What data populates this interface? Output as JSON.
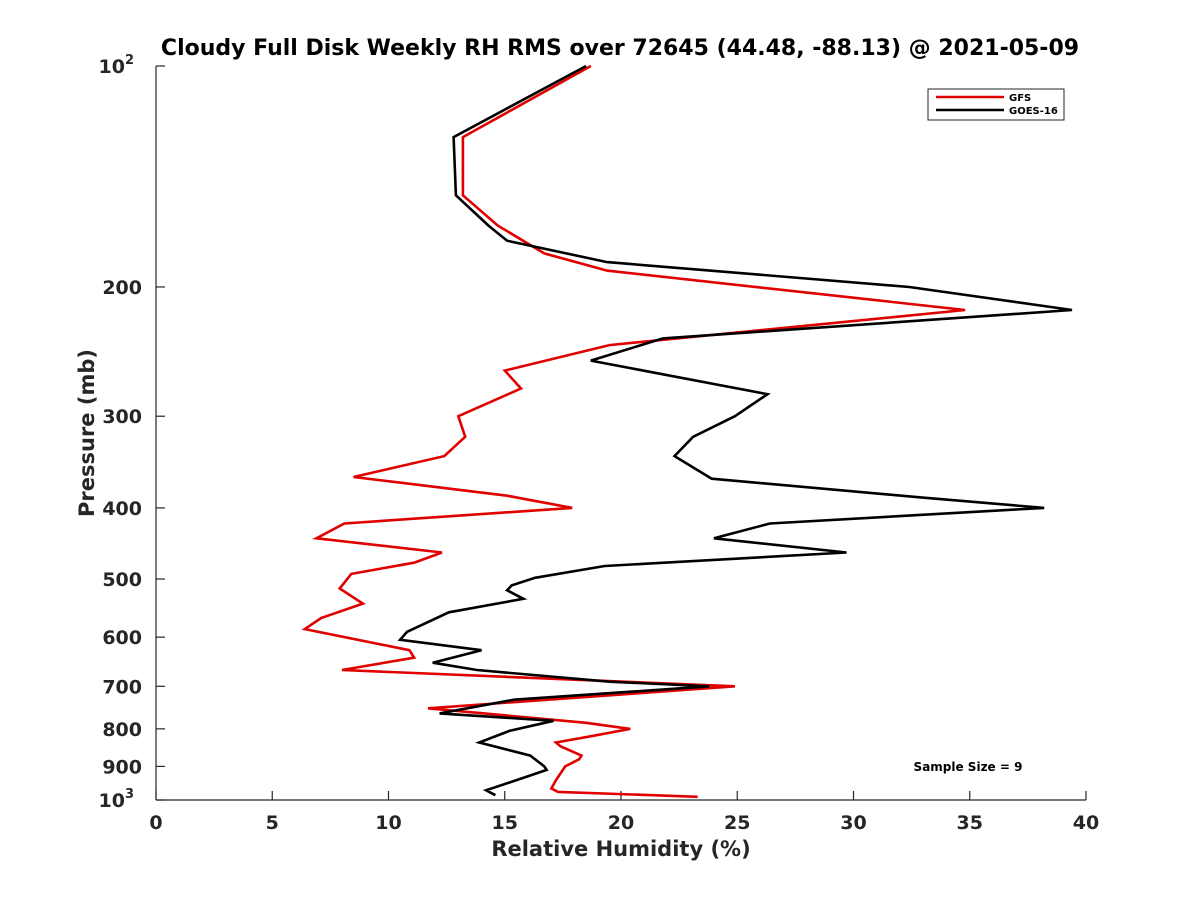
{
  "chart_data": {
    "type": "line",
    "title": "Cloudy Full Disk Weekly RH RMS over 72645 (44.48, -88.13) @ 2021-05-09",
    "xlabel": "Relative Humidity (%)",
    "ylabel": "Pressure (mb)",
    "xlim": [
      0,
      40
    ],
    "ylim": [
      100,
      1000
    ],
    "yscale": "log",
    "y_reversed": true,
    "grid": false,
    "legend_position": "top-right",
    "x_ticks": [
      "0",
      "5",
      "10",
      "15",
      "20",
      "25",
      "30",
      "35",
      "40"
    ],
    "y_ticks": [
      {
        "value": 100,
        "base": "10",
        "exp": "2"
      },
      {
        "value": 200,
        "label": "200"
      },
      {
        "value": 300,
        "label": "300"
      },
      {
        "value": 400,
        "label": "400"
      },
      {
        "value": 500,
        "label": "500"
      },
      {
        "value": 600,
        "label": "600"
      },
      {
        "value": 700,
        "label": "700"
      },
      {
        "value": 800,
        "label": "800"
      },
      {
        "value": 900,
        "label": "900"
      },
      {
        "value": 1000,
        "base": "10",
        "exp": "3"
      }
    ],
    "annotation": "Sample Size = 9",
    "series": [
      {
        "name": "GFS",
        "color": "#e00000",
        "points": [
          [
            18.7,
            100
          ],
          [
            13.2,
            125
          ],
          [
            13.2,
            150
          ],
          [
            14.7,
            165
          ],
          [
            16.7,
            180
          ],
          [
            19.4,
            190
          ],
          [
            34.8,
            215
          ],
          [
            19.5,
            240
          ],
          [
            15.0,
            260
          ],
          [
            15.7,
            275
          ],
          [
            13.0,
            300
          ],
          [
            13.3,
            320
          ],
          [
            12.4,
            340
          ],
          [
            8.5,
            363
          ],
          [
            15.1,
            385
          ],
          [
            17.9,
            400
          ],
          [
            8.1,
            420
          ],
          [
            6.9,
            440
          ],
          [
            12.3,
            460
          ],
          [
            11.1,
            475
          ],
          [
            8.4,
            492
          ],
          [
            7.9,
            515
          ],
          [
            8.9,
            540
          ],
          [
            7.1,
            565
          ],
          [
            6.4,
            585
          ],
          [
            10.9,
            625
          ],
          [
            11.1,
            640
          ],
          [
            8.0,
            665
          ],
          [
            24.9,
            700
          ],
          [
            11.7,
            750
          ],
          [
            18.5,
            785
          ],
          [
            20.4,
            800
          ],
          [
            18.6,
            820
          ],
          [
            17.2,
            835
          ],
          [
            17.4,
            845
          ],
          [
            18.3,
            870
          ],
          [
            18.2,
            880
          ],
          [
            17.6,
            900
          ],
          [
            17.2,
            940
          ],
          [
            17.0,
            965
          ],
          [
            17.3,
            975
          ],
          [
            23.3,
            990
          ]
        ]
      },
      {
        "name": "GOES-16",
        "color": "#000000",
        "points": [
          [
            18.5,
            100
          ],
          [
            12.8,
            125
          ],
          [
            12.9,
            150
          ],
          [
            14.3,
            165
          ],
          [
            15.1,
            173
          ],
          [
            19.4,
            185
          ],
          [
            32.4,
            200
          ],
          [
            39.4,
            215
          ],
          [
            21.8,
            235
          ],
          [
            18.7,
            252
          ],
          [
            26.3,
            280
          ],
          [
            24.9,
            300
          ],
          [
            23.1,
            320
          ],
          [
            22.3,
            340
          ],
          [
            23.9,
            365
          ],
          [
            32.9,
            387
          ],
          [
            38.2,
            400
          ],
          [
            26.4,
            420
          ],
          [
            24.0,
            440
          ],
          [
            29.7,
            460
          ],
          [
            19.3,
            480
          ],
          [
            16.3,
            498
          ],
          [
            15.3,
            510
          ],
          [
            15.1,
            518
          ],
          [
            15.8,
            532
          ],
          [
            12.6,
            555
          ],
          [
            10.8,
            590
          ],
          [
            10.5,
            605
          ],
          [
            14.0,
            625
          ],
          [
            11.9,
            650
          ],
          [
            13.8,
            665
          ],
          [
            19.5,
            690
          ],
          [
            23.8,
            700
          ],
          [
            15.4,
            730
          ],
          [
            12.2,
            762
          ],
          [
            17.1,
            780
          ],
          [
            15.2,
            805
          ],
          [
            13.9,
            835
          ],
          [
            16.1,
            870
          ],
          [
            16.7,
            900
          ],
          [
            16.8,
            910
          ],
          [
            15.7,
            935
          ],
          [
            14.2,
            970
          ],
          [
            14.6,
            985
          ]
        ]
      }
    ]
  }
}
